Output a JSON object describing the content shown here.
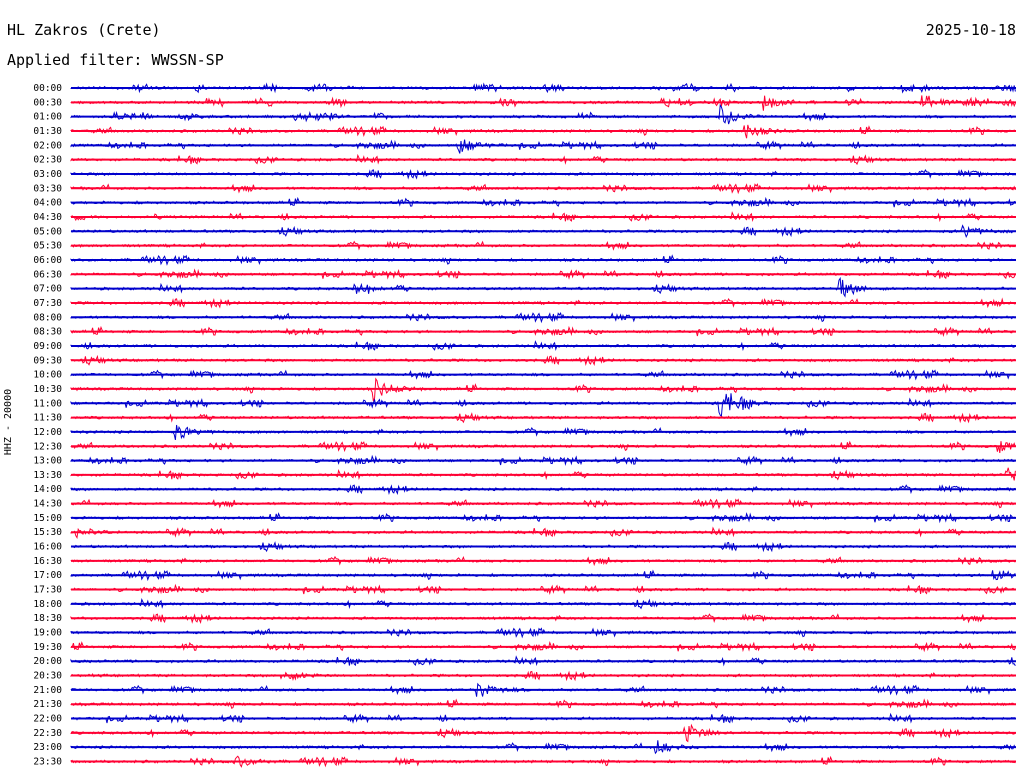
{
  "header": {
    "station": "HL Zakros (Crete)",
    "date": "2025-10-18",
    "filter": "Applied filter: WWSSN-SP"
  },
  "chart_data": {
    "type": "line",
    "title": "HL Zakros (Crete)",
    "ylabel": "HHZ - 20000",
    "xlabel": "",
    "rows": [
      "00:00",
      "00:30",
      "01:00",
      "01:30",
      "02:00",
      "02:30",
      "03:00",
      "03:30",
      "04:00",
      "04:30",
      "05:00",
      "05:30",
      "06:00",
      "06:30",
      "07:00",
      "07:30",
      "08:00",
      "08:30",
      "09:00",
      "09:30",
      "10:00",
      "10:30",
      "11:00",
      "11:30",
      "12:00",
      "12:30",
      "13:00",
      "13:30",
      "14:00",
      "14:30",
      "15:00",
      "15:30",
      "16:00",
      "16:30",
      "17:00",
      "17:30",
      "18:00",
      "18:30",
      "19:00",
      "19:30",
      "20:00",
      "20:30",
      "21:00",
      "21:30",
      "22:00",
      "22:30",
      "23:00",
      "23:30"
    ],
    "colors": [
      "#0000cc",
      "#ff0033"
    ],
    "events": [
      {
        "row": "00:30",
        "minute": 22.0,
        "amp": 0.7
      },
      {
        "row": "00:30",
        "minute": 27.0,
        "amp": 0.8
      },
      {
        "row": "01:00",
        "minute": 20.6,
        "amp": 1.1
      },
      {
        "row": "01:30",
        "minute": 21.4,
        "amp": 0.7
      },
      {
        "row": "02:00",
        "minute": 12.3,
        "amp": 0.8
      },
      {
        "row": "05:00",
        "minute": 28.3,
        "amp": 0.6
      },
      {
        "row": "07:00",
        "minute": 9.0,
        "amp": 0.5
      },
      {
        "row": "07:00",
        "minute": 24.4,
        "amp": 0.9
      },
      {
        "row": "10:30",
        "minute": 9.6,
        "amp": 1.0
      },
      {
        "row": "11:00",
        "minute": 20.6,
        "amp": 1.2
      },
      {
        "row": "12:00",
        "minute": 3.3,
        "amp": 0.7
      },
      {
        "row": "12:30",
        "minute": 29.4,
        "amp": 0.6
      },
      {
        "row": "13:30",
        "minute": 29.7,
        "amp": 0.8
      },
      {
        "row": "15:30",
        "minute": 0.2,
        "amp": 0.5
      },
      {
        "row": "17:00",
        "minute": 29.3,
        "amp": 0.6
      },
      {
        "row": "20:30",
        "minute": 6.7,
        "amp": 0.6
      },
      {
        "row": "21:00",
        "minute": 12.9,
        "amp": 0.8
      },
      {
        "row": "22:30",
        "minute": 19.5,
        "amp": 1.0
      },
      {
        "row": "23:00",
        "minute": 18.6,
        "amp": 0.6
      },
      {
        "row": "23:30",
        "minute": 5.2,
        "amp": 0.6
      }
    ]
  }
}
